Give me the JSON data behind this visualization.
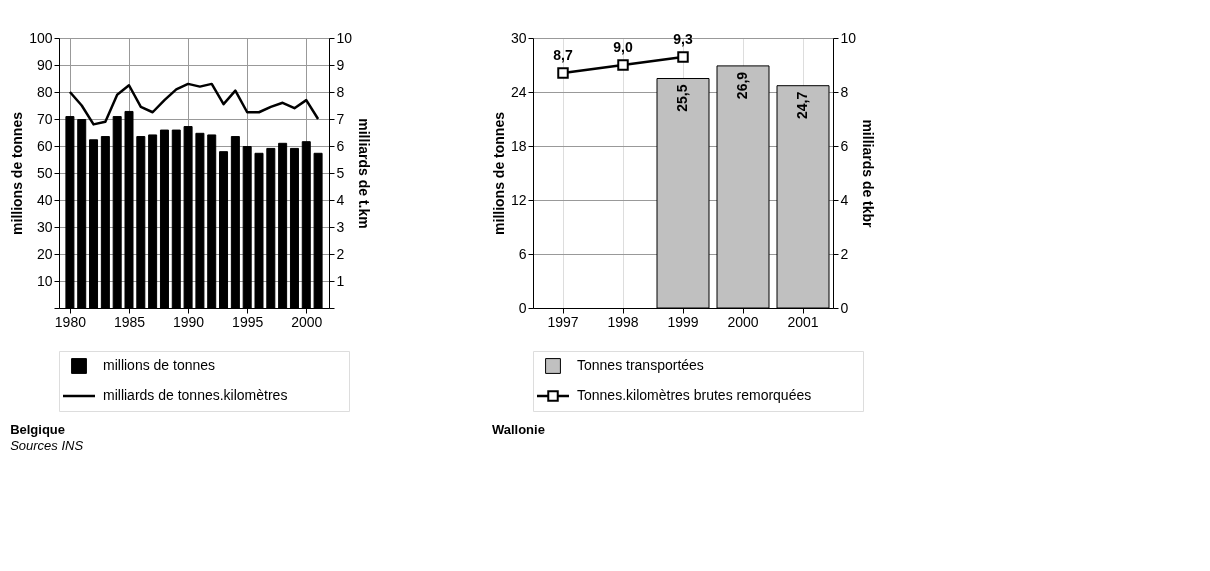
{
  "chart_data": [
    {
      "type": "bar",
      "title": "Belgique",
      "ylabel": "millions de tonnes",
      "y2label": "milliards de t.km",
      "annotations": [
        "Sources INS"
      ],
      "x": [
        1980,
        1981,
        1982,
        1983,
        1984,
        1985,
        1986,
        1987,
        1988,
        1989,
        1990,
        1991,
        1992,
        1993,
        1994,
        1995,
        1996,
        1997,
        1998,
        1999,
        2000,
        2001
      ],
      "xlim": [
        1979.5,
        2001.5
      ],
      "xticks": [
        1980,
        1985,
        1990,
        1995,
        2000
      ],
      "ylim": [
        0,
        100
      ],
      "yticks": [
        {
          "value": 0,
          "label": null
        },
        10,
        20,
        30,
        40,
        50,
        60,
        70,
        80,
        90,
        100
      ],
      "y2lim": [
        0,
        10
      ],
      "y2ticks": [
        {
          "value": 0,
          "label": null
        },
        1,
        2,
        3,
        4,
        5,
        6,
        7,
        8,
        9,
        10
      ],
      "series": [
        {
          "name": "millions de tonnes",
          "color": "#000000",
          "values": [
            70.9,
            69.8,
            62.3,
            63.5,
            70.9,
            72.8,
            63.5,
            64.1,
            65.9,
            65.9,
            67.2,
            64.7,
            64.1,
            57.9,
            63.5,
            59.8,
            57.3,
            59.1,
            61.0,
            59.1,
            61.6,
            57.3
          ]
        },
        {
          "name": "milliards de tonnes.kilomètres",
          "type": "line",
          "axis": "y2",
          "color": "#000000",
          "values": [
            8.0,
            7.5,
            6.8,
            6.9,
            7.9,
            8.25,
            7.45,
            7.25,
            7.7,
            8.1,
            8.3,
            8.2,
            8.3,
            7.55,
            8.05,
            7.25,
            7.25,
            7.45,
            7.6,
            7.4,
            7.7,
            7.0
          ]
        }
      ],
      "grid": true,
      "legend": "bottom"
    },
    {
      "type": "bar",
      "title": "Wallonie",
      "ylabel": "millions de tonnes",
      "y2label": "milliards de tkbr",
      "categories": [
        "1997",
        "1998",
        "1999",
        "2000",
        "2001"
      ],
      "ylim": [
        0,
        30
      ],
      "yticks": [
        0,
        6,
        12,
        18,
        24,
        30
      ],
      "y2lim": [
        0,
        10
      ],
      "y2ticks": [
        0,
        2,
        4,
        6,
        8,
        10
      ],
      "series": [
        {
          "name": "Tonnes transportées",
          "color": "#c0c0c0",
          "values": [
            null,
            null,
            25.5,
            26.9,
            24.7
          ],
          "value_labels": [
            null,
            null,
            "25,5",
            "26,9",
            "24,7"
          ]
        },
        {
          "name": "Tonnes.kilomètres brutes remorquées",
          "type": "line",
          "axis": "y2",
          "color": "#000000",
          "values": [
            8.7,
            9.0,
            9.3,
            null,
            null
          ],
          "value_labels": [
            "8,7",
            "9,0",
            "9,3",
            null,
            null
          ]
        }
      ],
      "grid": true,
      "legend": "bottom",
      "marker": "square"
    }
  ]
}
